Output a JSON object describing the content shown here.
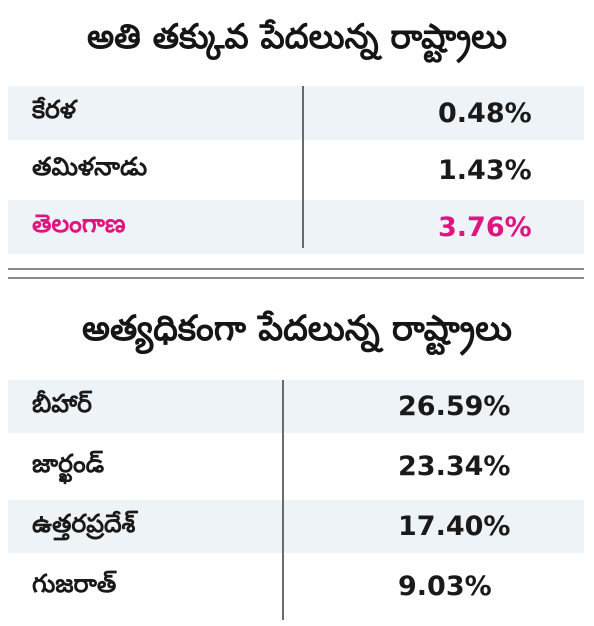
{
  "chart_data": [
    {
      "type": "table",
      "title": "అతి తక్కువ పేదలున్న రాష్ట్రాలు",
      "rows": [
        {
          "state": "కేరళ",
          "value": "0.48%",
          "highlight": false
        },
        {
          "state": "తమిళనాడు",
          "value": "1.43%",
          "highlight": false
        },
        {
          "state": "తెలంగాణ",
          "value": "3.76%",
          "highlight": true
        }
      ]
    },
    {
      "type": "table",
      "title": "అత్యధికంగా పేదలున్న రాష్ట్రాలు",
      "rows": [
        {
          "state": "బీహార్",
          "value": "26.59%",
          "highlight": false
        },
        {
          "state": "జార్ఖండ్",
          "value": "23.34%",
          "highlight": false
        },
        {
          "state": "ఉత్తరప్రదేశ్",
          "value": "17.40%",
          "highlight": false
        },
        {
          "state": "గుజరాత్",
          "value": "9.03%",
          "highlight": false
        }
      ]
    }
  ],
  "colors": {
    "highlight": "#e0157f",
    "row_shade": "#eef3f8",
    "text": "#1a1a1a"
  }
}
